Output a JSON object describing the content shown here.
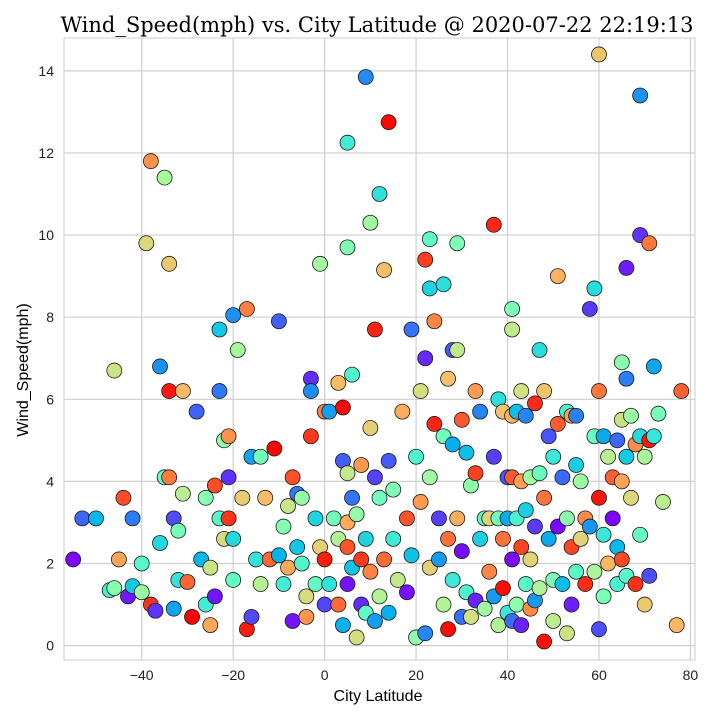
{
  "chart_data": {
    "type": "scatter",
    "title": "Wind_Speed(mph) vs. City Latitude @ 2020-07-22 22:19:13",
    "xlabel": "City Latitude",
    "ylabel": "Wind_Speed(mph)",
    "xlim": [
      -57,
      81
    ],
    "ylim": [
      -0.35,
      14.8
    ],
    "xticks": [
      -40,
      -20,
      0,
      20,
      40,
      60,
      80
    ],
    "yticks": [
      0,
      2,
      4,
      6,
      8,
      10,
      12,
      14
    ],
    "xtick_labels": [
      "−40",
      "−20",
      "0",
      "20",
      "40",
      "60",
      "80"
    ],
    "ytick_labels": [
      "0",
      "2",
      "4",
      "6",
      "8",
      "10",
      "12",
      "14"
    ],
    "grid": true,
    "colormap": "rainbow (color varies with point order)",
    "marker_edge_color": "#000000",
    "points": [
      [
        -55,
        2.1
      ],
      [
        -53,
        3.1
      ],
      [
        -50,
        3.1
      ],
      [
        -47,
        1.35
      ],
      [
        -46,
        1.4
      ],
      [
        -46,
        6.7
      ],
      [
        -45,
        2.1
      ],
      [
        -44,
        3.6
      ],
      [
        -43,
        1.2
      ],
      [
        -42,
        3.1
      ],
      [
        -42,
        1.45
      ],
      [
        -40,
        2.0
      ],
      [
        -40,
        1.3
      ],
      [
        -39,
        9.8
      ],
      [
        -38,
        11.8
      ],
      [
        -38,
        1.0
      ],
      [
        -37,
        0.85
      ],
      [
        -36,
        6.8
      ],
      [
        -36,
        2.5
      ],
      [
        -35,
        4.1
      ],
      [
        -35,
        11.4
      ],
      [
        -34,
        9.3
      ],
      [
        -34,
        4.1
      ],
      [
        -34,
        6.2
      ],
      [
        -33,
        3.1
      ],
      [
        -33,
        0.9
      ],
      [
        -32,
        1.6
      ],
      [
        -32,
        2.8
      ],
      [
        -31,
        3.7
      ],
      [
        -31,
        6.2
      ],
      [
        -30,
        1.55
      ],
      [
        -29,
        0.7
      ],
      [
        -28,
        5.7
      ],
      [
        -27,
        2.1
      ],
      [
        -26,
        1.0
      ],
      [
        -26,
        3.6
      ],
      [
        -25,
        1.9
      ],
      [
        -25,
        0.5
      ],
      [
        -24,
        3.9
      ],
      [
        -24,
        1.2
      ],
      [
        -23,
        6.2
      ],
      [
        -23,
        7.7
      ],
      [
        -23,
        3.1
      ],
      [
        -22,
        5.0
      ],
      [
        -22,
        2.6
      ],
      [
        -21,
        5.1
      ],
      [
        -21,
        3.1
      ],
      [
        -21,
        4.1
      ],
      [
        -20,
        8.05
      ],
      [
        -20,
        2.6
      ],
      [
        -20,
        1.6
      ],
      [
        -19,
        7.2
      ],
      [
        -18,
        3.6
      ],
      [
        -17,
        8.2
      ],
      [
        -17,
        0.4
      ],
      [
        -16,
        0.7
      ],
      [
        -16,
        4.6
      ],
      [
        -15,
        2.1
      ],
      [
        -14,
        4.6
      ],
      [
        -14,
        1.5
      ],
      [
        -13,
        3.6
      ],
      [
        -12,
        2.1
      ],
      [
        -11,
        4.8
      ],
      [
        -10,
        7.9
      ],
      [
        -10,
        2.2
      ],
      [
        -9,
        1.5
      ],
      [
        -9,
        2.9
      ],
      [
        -8,
        3.4
      ],
      [
        -8,
        1.9
      ],
      [
        -7,
        4.1
      ],
      [
        -7,
        0.6
      ],
      [
        -6,
        3.7
      ],
      [
        -6,
        2.4
      ],
      [
        -5,
        2.0
      ],
      [
        -5,
        3.6
      ],
      [
        -4,
        1.2
      ],
      [
        -4,
        0.7
      ],
      [
        -3,
        5.1
      ],
      [
        -3,
        6.5
      ],
      [
        -3,
        6.2
      ],
      [
        -2,
        3.1
      ],
      [
        -2,
        1.5
      ],
      [
        -1,
        9.3
      ],
      [
        -1,
        2.4
      ],
      [
        0,
        5.7
      ],
      [
        0,
        2.1
      ],
      [
        0,
        1.0
      ],
      [
        1,
        5.7
      ],
      [
        1,
        1.5
      ],
      [
        2,
        3.1
      ],
      [
        3,
        2.6
      ],
      [
        3,
        6.4
      ],
      [
        3,
        1.0
      ],
      [
        4,
        5.8
      ],
      [
        4,
        4.5
      ],
      [
        4,
        0.5
      ],
      [
        5,
        12.25
      ],
      [
        5,
        9.7
      ],
      [
        5,
        4.2
      ],
      [
        5,
        3.0
      ],
      [
        5,
        2.4
      ],
      [
        5,
        1.5
      ],
      [
        6,
        3.6
      ],
      [
        6,
        1.9
      ],
      [
        6,
        6.6
      ],
      [
        7,
        3.2
      ],
      [
        7,
        0.2
      ],
      [
        8,
        4.4
      ],
      [
        8,
        2.1
      ],
      [
        8,
        1.0
      ],
      [
        9,
        13.85
      ],
      [
        9,
        2.6
      ],
      [
        9,
        0.8
      ],
      [
        10,
        10.3
      ],
      [
        10,
        5.3
      ],
      [
        10,
        1.8
      ],
      [
        11,
        7.7
      ],
      [
        11,
        4.1
      ],
      [
        11,
        0.6
      ],
      [
        12,
        11.0
      ],
      [
        12,
        3.6
      ],
      [
        12,
        1.2
      ],
      [
        13,
        9.15
      ],
      [
        13,
        2.1
      ],
      [
        14,
        12.75
      ],
      [
        14,
        4.5
      ],
      [
        14,
        0.8
      ],
      [
        15,
        2.6
      ],
      [
        15,
        3.8
      ],
      [
        16,
        1.6
      ],
      [
        17,
        5.7
      ],
      [
        18,
        3.1
      ],
      [
        18,
        1.3
      ],
      [
        19,
        7.7
      ],
      [
        19,
        2.2
      ],
      [
        20,
        4.6
      ],
      [
        20,
        0.2
      ],
      [
        21,
        6.2
      ],
      [
        21,
        3.5
      ],
      [
        22,
        9.4
      ],
      [
        22,
        7.0
      ],
      [
        22,
        0.3
      ],
      [
        23,
        8.7
      ],
      [
        23,
        9.9
      ],
      [
        23,
        4.1
      ],
      [
        23,
        1.9
      ],
      [
        24,
        7.9
      ],
      [
        24,
        5.4
      ],
      [
        25,
        3.1
      ],
      [
        25,
        2.1
      ],
      [
        26,
        8.8
      ],
      [
        26,
        5.1
      ],
      [
        26,
        1.0
      ],
      [
        27,
        6.5
      ],
      [
        27,
        2.6
      ],
      [
        27,
        0.4
      ],
      [
        28,
        7.2
      ],
      [
        28,
        4.9
      ],
      [
        28,
        1.6
      ],
      [
        29,
        9.8
      ],
      [
        29,
        7.2
      ],
      [
        29,
        3.1
      ],
      [
        30,
        5.5
      ],
      [
        30,
        2.3
      ],
      [
        30,
        0.7
      ],
      [
        31,
        4.7
      ],
      [
        31,
        1.3
      ],
      [
        32,
        3.9
      ],
      [
        32,
        0.7
      ],
      [
        33,
        6.2
      ],
      [
        33,
        4.2
      ],
      [
        33,
        1.1
      ],
      [
        34,
        5.7
      ],
      [
        34,
        2.6
      ],
      [
        35,
        3.1
      ],
      [
        35,
        0.9
      ],
      [
        36,
        3.1
      ],
      [
        36,
        1.8
      ],
      [
        37,
        10.25
      ],
      [
        37,
        4.6
      ],
      [
        37,
        1.2
      ],
      [
        38,
        6.0
      ],
      [
        38,
        3.1
      ],
      [
        38,
        0.5
      ],
      [
        39,
        5.7
      ],
      [
        39,
        2.6
      ],
      [
        39,
        1.4
      ],
      [
        40,
        4.1
      ],
      [
        40,
        3.1
      ],
      [
        40,
        0.8
      ],
      [
        41,
        8.2
      ],
      [
        41,
        7.7
      ],
      [
        41,
        5.6
      ],
      [
        41,
        4.1
      ],
      [
        41,
        2.1
      ],
      [
        41,
        0.6
      ],
      [
        42,
        5.7
      ],
      [
        42,
        3.1
      ],
      [
        42,
        1.0
      ],
      [
        43,
        6.2
      ],
      [
        43,
        4.0
      ],
      [
        43,
        2.4
      ],
      [
        43,
        0.5
      ],
      [
        44,
        5.6
      ],
      [
        44,
        3.3
      ],
      [
        44,
        1.5
      ],
      [
        45,
        4.1
      ],
      [
        45,
        2.1
      ],
      [
        45,
        0.9
      ],
      [
        46,
        5.9
      ],
      [
        46,
        2.9
      ],
      [
        46,
        1.1
      ],
      [
        47,
        7.2
      ],
      [
        47,
        4.2
      ],
      [
        47,
        1.4
      ],
      [
        48,
        6.2
      ],
      [
        48,
        3.6
      ],
      [
        48,
        0.1
      ],
      [
        49,
        5.1
      ],
      [
        49,
        2.6
      ],
      [
        50,
        4.6
      ],
      [
        50,
        1.6
      ],
      [
        50,
        0.6
      ],
      [
        51,
        9.0
      ],
      [
        51,
        5.4
      ],
      [
        51,
        2.9
      ],
      [
        52,
        4.1
      ],
      [
        52,
        1.5
      ],
      [
        53,
        5.7
      ],
      [
        53,
        3.1
      ],
      [
        53,
        0.3
      ],
      [
        54,
        5.6
      ],
      [
        54,
        2.4
      ],
      [
        54,
        1.0
      ],
      [
        55,
        5.6
      ],
      [
        55,
        4.4
      ],
      [
        55,
        1.8
      ],
      [
        56,
        4.0
      ],
      [
        56,
        2.6
      ],
      [
        57,
        3.1
      ],
      [
        57,
        1.5
      ],
      [
        58,
        8.2
      ],
      [
        58,
        2.9
      ],
      [
        59,
        8.7
      ],
      [
        59,
        5.1
      ],
      [
        59,
        1.8
      ],
      [
        60,
        14.4
      ],
      [
        60,
        6.2
      ],
      [
        60,
        3.6
      ],
      [
        60,
        0.4
      ],
      [
        61,
        5.1
      ],
      [
        61,
        2.7
      ],
      [
        61,
        1.2
      ],
      [
        62,
        4.6
      ],
      [
        62,
        2.0
      ],
      [
        63,
        4.1
      ],
      [
        63,
        3.1
      ],
      [
        64,
        5.0
      ],
      [
        64,
        2.4
      ],
      [
        64,
        1.5
      ],
      [
        65,
        6.9
      ],
      [
        65,
        5.5
      ],
      [
        65,
        4.0
      ],
      [
        65,
        2.1
      ],
      [
        66,
        9.2
      ],
      [
        66,
        6.5
      ],
      [
        66,
        4.6
      ],
      [
        66,
        1.7
      ],
      [
        67,
        5.6
      ],
      [
        67,
        3.6
      ],
      [
        68,
        4.9
      ],
      [
        68,
        1.5
      ],
      [
        69,
        10.0
      ],
      [
        69,
        13.4
      ],
      [
        69,
        5.1
      ],
      [
        69,
        2.7
      ],
      [
        70,
        4.6
      ],
      [
        70,
        1.0
      ],
      [
        71,
        9.8
      ],
      [
        71,
        5.0
      ],
      [
        71,
        1.7
      ],
      [
        72,
        6.8
      ],
      [
        72,
        5.1
      ],
      [
        73,
        5.65
      ],
      [
        74,
        3.5
      ],
      [
        77,
        0.5
      ],
      [
        78,
        6.2
      ]
    ]
  }
}
